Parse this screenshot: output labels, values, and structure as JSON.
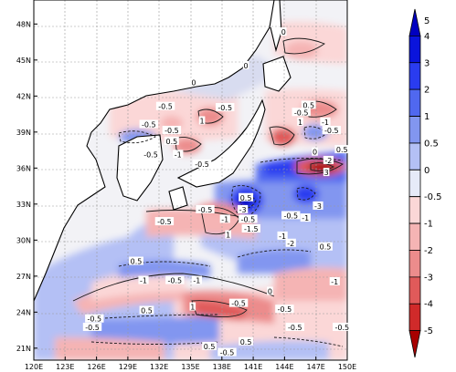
{
  "chart_data": {
    "type": "heatmap",
    "title": "",
    "xlabel": "",
    "ylabel": "",
    "x_range": [
      120,
      150
    ],
    "y_range": [
      20,
      50
    ],
    "x_ticks": [
      {
        "value": 120,
        "label": "120E"
      },
      {
        "value": 123,
        "label": "123E"
      },
      {
        "value": 126,
        "label": "126E"
      },
      {
        "value": 129,
        "label": "129E"
      },
      {
        "value": 132,
        "label": "132E"
      },
      {
        "value": 135,
        "label": "135E"
      },
      {
        "value": 138,
        "label": "138E"
      },
      {
        "value": 141,
        "label": "141E"
      },
      {
        "value": 144,
        "label": "144E"
      },
      {
        "value": 147,
        "label": "147E"
      },
      {
        "value": 150,
        "label": "150E"
      }
    ],
    "y_ticks": [
      {
        "value": 21,
        "label": "21N"
      },
      {
        "value": 24,
        "label": "24N"
      },
      {
        "value": 27,
        "label": "27N"
      },
      {
        "value": 30,
        "label": "30N"
      },
      {
        "value": 33,
        "label": "33N"
      },
      {
        "value": 36,
        "label": "36N"
      },
      {
        "value": 39,
        "label": "39N"
      },
      {
        "value": 42,
        "label": "42N"
      },
      {
        "value": 45,
        "label": "45N"
      },
      {
        "value": 48,
        "label": "48N"
      }
    ],
    "grid": true,
    "colorbar": {
      "orientation": "vertical",
      "boundaries": [
        -5,
        -4,
        -3,
        -2,
        -1,
        -0.5,
        0,
        0.5,
        1,
        2,
        3,
        4,
        5
      ],
      "labels": [
        "5",
        "4",
        "3",
        "2",
        "1",
        "0.5",
        "0",
        "-0.5",
        "-1",
        "-2",
        "-3",
        "-4",
        "-5"
      ],
      "colors": [
        "#0000c0",
        "#0a14dc",
        "#2a3cf0",
        "#5068f0",
        "#8296f0",
        "#b4c0f5",
        "#e6eaf8",
        "#fbd7d7",
        "#f5b4b4",
        "#ec8c8c",
        "#e05a5a",
        "#d02a2a",
        "#a80000"
      ],
      "extend": "both"
    },
    "contour_labels": [
      {
        "text": "0",
        "lon": 143.9,
        "lat": 47.3
      },
      {
        "text": "0",
        "lon": 140.3,
        "lat": 44.5
      },
      {
        "text": "0",
        "lon": 135.3,
        "lat": 43.1
      },
      {
        "text": "-0.5",
        "lon": 132.6,
        "lat": 41.1
      },
      {
        "text": "-0.5",
        "lon": 138.3,
        "lat": 41.0
      },
      {
        "text": "1",
        "lon": 136.1,
        "lat": 39.9
      },
      {
        "text": "-0.5",
        "lon": 131.0,
        "lat": 39.6
      },
      {
        "text": "-0.5",
        "lon": 133.2,
        "lat": 39.1
      },
      {
        "text": "0.5",
        "lon": 133.2,
        "lat": 38.2
      },
      {
        "text": "-0.5",
        "lon": 131.2,
        "lat": 37.1
      },
      {
        "text": "-1",
        "lon": 133.8,
        "lat": 37.1
      },
      {
        "text": "-0.5",
        "lon": 136.1,
        "lat": 36.3
      },
      {
        "text": "0.5",
        "lon": 146.3,
        "lat": 41.2
      },
      {
        "text": "-0.5",
        "lon": 145.6,
        "lat": 40.6
      },
      {
        "text": "1",
        "lon": 145.5,
        "lat": 39.8
      },
      {
        "text": "-1",
        "lon": 147.9,
        "lat": 39.8
      },
      {
        "text": "-0.5",
        "lon": 148.5,
        "lat": 39.1
      },
      {
        "text": "0.5",
        "lon": 149.5,
        "lat": 37.5
      },
      {
        "text": "0",
        "lon": 146.9,
        "lat": 37.3
      },
      {
        "text": "-2",
        "lon": 148.2,
        "lat": 36.6
      },
      {
        "text": "3",
        "lon": 148.0,
        "lat": 35.6
      },
      {
        "text": "-3",
        "lon": 147.2,
        "lat": 32.8
      },
      {
        "text": "0.5",
        "lon": 140.3,
        "lat": 33.5
      },
      {
        "text": "-0.5",
        "lon": 136.4,
        "lat": 32.5
      },
      {
        "text": "-3",
        "lon": 140.0,
        "lat": 32.5
      },
      {
        "text": "-1",
        "lon": 138.3,
        "lat": 31.7
      },
      {
        "text": "-0.5",
        "lon": 140.5,
        "lat": 31.7
      },
      {
        "text": "-0.5",
        "lon": 144.6,
        "lat": 32.0
      },
      {
        "text": "-1",
        "lon": 146.0,
        "lat": 31.8
      },
      {
        "text": "-1.5",
        "lon": 140.8,
        "lat": 30.9
      },
      {
        "text": "-0.5",
        "lon": 132.5,
        "lat": 31.5
      },
      {
        "text": "-1",
        "lon": 143.8,
        "lat": 30.3
      },
      {
        "text": "-2",
        "lon": 144.6,
        "lat": 29.7
      },
      {
        "text": "1",
        "lon": 138.6,
        "lat": 30.4
      },
      {
        "text": "0.5",
        "lon": 147.9,
        "lat": 29.4
      },
      {
        "text": "0.5",
        "lon": 129.8,
        "lat": 28.2
      },
      {
        "text": "-1",
        "lon": 130.5,
        "lat": 26.6
      },
      {
        "text": "-0.5",
        "lon": 133.5,
        "lat": 26.6
      },
      {
        "text": "-1",
        "lon": 135.6,
        "lat": 26.6
      },
      {
        "text": "-1",
        "lon": 148.8,
        "lat": 26.5
      },
      {
        "text": "-0.5",
        "lon": 139.6,
        "lat": 24.7
      },
      {
        "text": "0",
        "lon": 142.6,
        "lat": 25.7
      },
      {
        "text": "-0.5",
        "lon": 144.0,
        "lat": 24.2
      },
      {
        "text": "0.5",
        "lon": 130.8,
        "lat": 24.1
      },
      {
        "text": "1",
        "lon": 135.2,
        "lat": 24.4
      },
      {
        "text": "-0.5",
        "lon": 125.8,
        "lat": 23.4
      },
      {
        "text": "-0.5",
        "lon": 125.6,
        "lat": 22.7
      },
      {
        "text": "-0.5",
        "lon": 145.0,
        "lat": 22.7
      },
      {
        "text": "-0.5",
        "lon": 149.5,
        "lat": 22.7
      },
      {
        "text": "0.5",
        "lon": 140.3,
        "lat": 21.5
      },
      {
        "text": "0.5",
        "lon": 136.8,
        "lat": 21.1
      },
      {
        "text": "-0.5",
        "lon": 138.5,
        "lat": 20.6
      }
    ]
  }
}
